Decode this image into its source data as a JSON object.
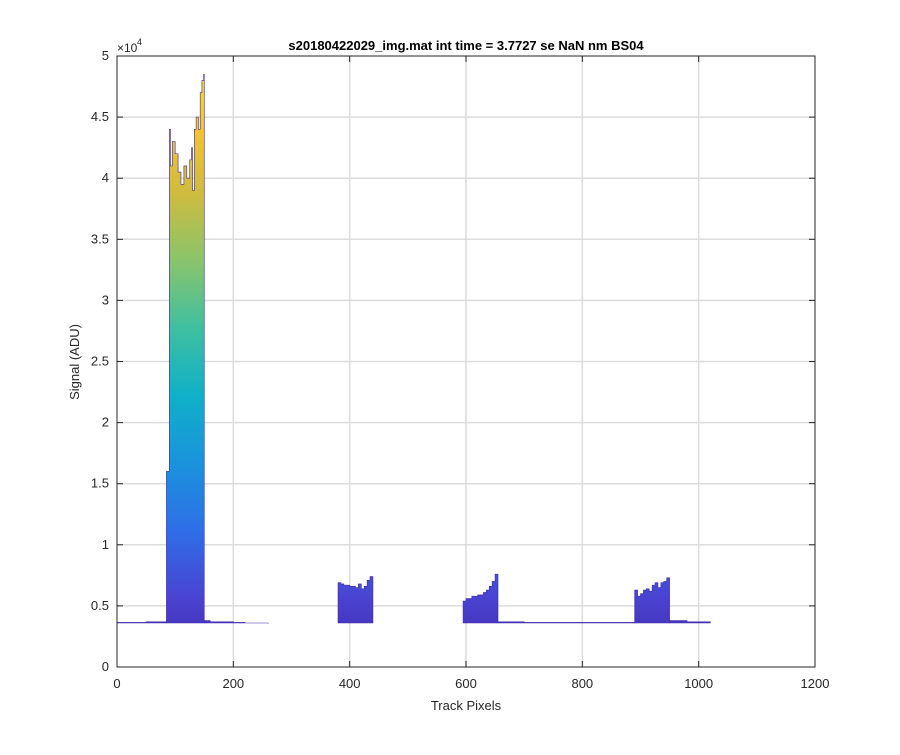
{
  "chart_data": {
    "type": "area",
    "title": "s20180422029_img.mat int time = 3.7727 se  NaN nm BS04",
    "xlabel": "Track Pixels",
    "ylabel": "Signal (ADU)",
    "xlim": [
      0,
      1200
    ],
    "ylim": [
      0,
      50000
    ],
    "y_exponent_label": "×10",
    "y_exponent_value": "4",
    "xticks": [
      0,
      200,
      400,
      600,
      800,
      1000,
      1200
    ],
    "xtick_labels": [
      "0",
      "200",
      "400",
      "600",
      "800",
      "1000",
      "1200"
    ],
    "yticks": [
      0,
      5000,
      10000,
      15000,
      20000,
      25000,
      30000,
      35000,
      40000,
      45000,
      50000
    ],
    "ytick_labels": [
      "0",
      "0.5",
      "1",
      "1.5",
      "2",
      "2.5",
      "3",
      "3.5",
      "4",
      "4.5",
      "5"
    ],
    "grid": true,
    "colormap": [
      "#3e26a8",
      "#4a42d0",
      "#2f6ee8",
      "#1a93dc",
      "#10b0c8",
      "#3fbfa0",
      "#8bc46b",
      "#d0bb3e",
      "#f6c532",
      "#f9e925"
    ],
    "baseline": 3600,
    "segments": [
      {
        "x": [
          0,
          50,
          85
        ],
        "y": [
          3650,
          3700,
          3800
        ]
      },
      {
        "x": [
          85,
          90,
          92,
          95,
          100,
          105,
          110,
          115,
          120,
          125,
          128,
          130,
          133,
          136,
          140,
          143,
          146,
          149,
          150
        ],
        "y": [
          16000,
          44000,
          41000,
          43000,
          42000,
          40500,
          39500,
          41000,
          40000,
          41500,
          42500,
          39000,
          44000,
          45000,
          44000,
          47000,
          48000,
          48500,
          40000
        ]
      },
      {
        "x": [
          150,
          160,
          200,
          220,
          260
        ],
        "y": [
          3800,
          3700,
          3650,
          3600,
          3550
        ]
      },
      {
        "x": [
          380,
          385,
          390,
          400,
          410,
          415,
          420,
          425,
          430,
          435,
          440
        ],
        "y": [
          6900,
          6800,
          6700,
          6600,
          6500,
          6800,
          6400,
          6600,
          7100,
          7400,
          6800
        ]
      },
      {
        "x": [
          595,
          600,
          610,
          620,
          630,
          635,
          640,
          645,
          650,
          655
        ],
        "y": [
          5400,
          5600,
          5800,
          5900,
          6100,
          6300,
          6600,
          7000,
          7600,
          7400
        ]
      },
      {
        "x": [
          655,
          700,
          750,
          800,
          850,
          890
        ],
        "y": [
          3700,
          3650,
          3650,
          3650,
          3650,
          3650
        ]
      },
      {
        "x": [
          890,
          895,
          900,
          905,
          910,
          915,
          920,
          925,
          930,
          935,
          940,
          945,
          950
        ],
        "y": [
          6300,
          5800,
          6000,
          6300,
          6400,
          6200,
          6700,
          6900,
          6500,
          6900,
          7000,
          7300,
          7100
        ]
      },
      {
        "x": [
          950,
          980,
          1020
        ],
        "y": [
          3800,
          3700,
          3600
        ]
      }
    ]
  }
}
